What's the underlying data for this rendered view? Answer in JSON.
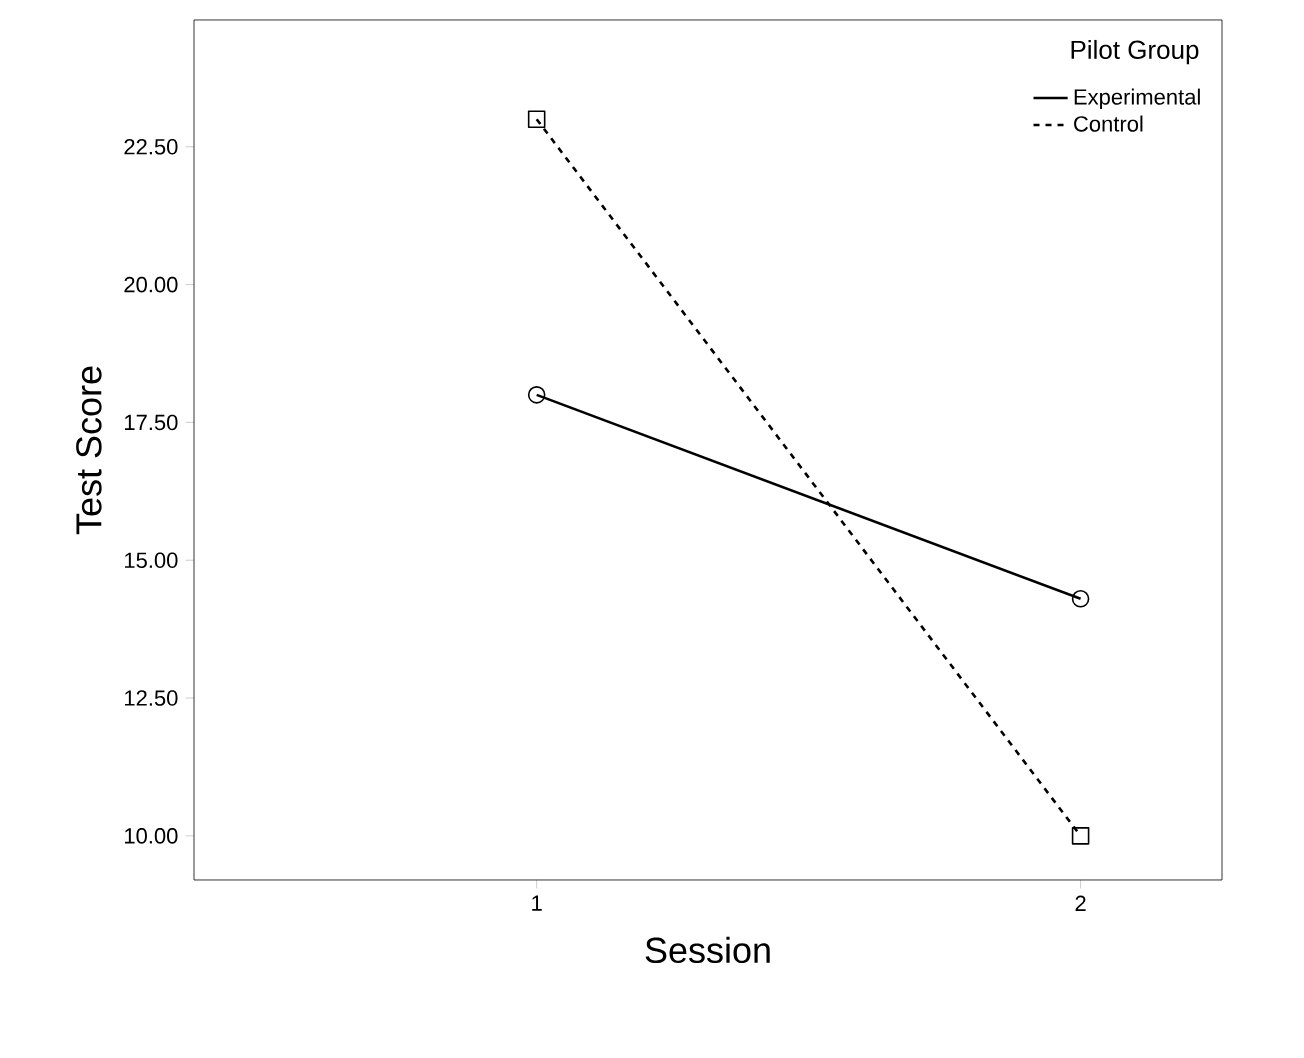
{
  "chart_data": {
    "type": "line",
    "xlabel": "Session",
    "ylabel": "Test Score",
    "legend_title": "Pilot Group",
    "x": [
      1,
      2
    ],
    "series": [
      {
        "name": "Experimental",
        "color": "#000000",
        "values": [
          18.0,
          14.3
        ],
        "marker": "circle",
        "line_style": "solid"
      },
      {
        "name": "Control",
        "color": "#000000",
        "values": [
          23.0,
          10.0
        ],
        "marker": "square",
        "line_style": "dashed"
      }
    ],
    "xlim": [
      0.37,
      2.26
    ],
    "ylim": [
      9.2,
      24.8
    ],
    "xticks": [
      1,
      2
    ],
    "yticks": [
      {
        "value": 10,
        "label": "10.00"
      },
      {
        "value": 12.5,
        "label": "12.50"
      },
      {
        "value": 15,
        "label": "15.00"
      },
      {
        "value": 17.5,
        "label": "17.50"
      },
      {
        "value": 20,
        "label": "20.00"
      },
      {
        "value": 22.5,
        "label": "22.50"
      }
    ],
    "legend": "top right",
    "grid": false
  }
}
